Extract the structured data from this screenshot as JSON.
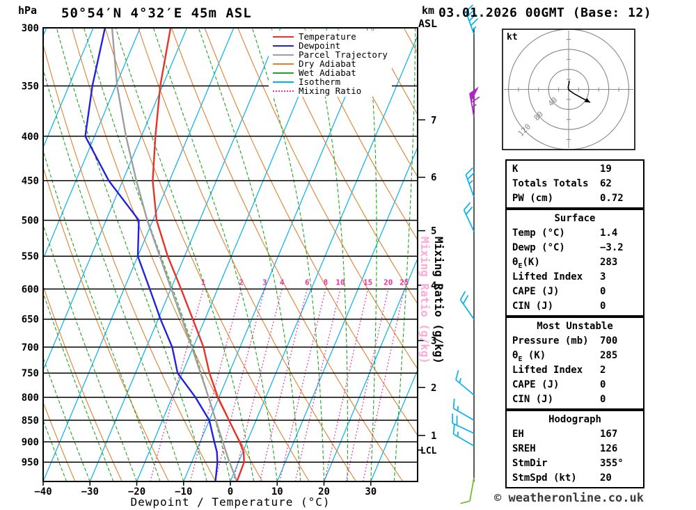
{
  "header": {
    "pressure_unit": "hPa",
    "station": "50°54′N 4°32′E 45m ASL",
    "datetime": "03.01.2026 00GMT (Base: 12)",
    "alt_unit_top": "km",
    "alt_unit_bottom": "ASL"
  },
  "legend": [
    {
      "label": "Temperature",
      "color": "#e73227",
      "style": "solid"
    },
    {
      "label": "Dewpoint",
      "color": "#2121de",
      "style": "solid"
    },
    {
      "label": "Parcel Trajectory",
      "color": "#9e9e9e",
      "style": "solid"
    },
    {
      "label": "Dry Adiabat",
      "color": "#e0812e",
      "style": "solid"
    },
    {
      "label": "Wet Adiabat",
      "color": "#1ea41e",
      "style": "solid"
    },
    {
      "label": "Isotherm",
      "color": "#00b2ee",
      "style": "solid"
    },
    {
      "label": "Mixing Ratio",
      "color": "#ee2fa0",
      "style": "dotted"
    }
  ],
  "axes": {
    "pressure_ticks": [
      300,
      350,
      400,
      450,
      500,
      550,
      600,
      650,
      700,
      750,
      800,
      850,
      900,
      950
    ],
    "temp_ticks": [
      -40,
      -30,
      -20,
      -10,
      0,
      10,
      20,
      30
    ],
    "xlabel": "Dewpoint / Temperature (°C)",
    "km_label_values": [
      {
        "km": 7,
        "p": 383
      },
      {
        "km": 6,
        "p": 446
      },
      {
        "km": 5,
        "p": 514
      },
      {
        "km": 4,
        "p": 594
      },
      {
        "km": 3,
        "p": 688
      },
      {
        "km": 2,
        "p": 779
      },
      {
        "km": 1,
        "p": 885
      }
    ],
    "lcl": {
      "label": "LCL",
      "p": 920
    },
    "mixing_axis_label": "Mixing Ratio (g/kg)"
  },
  "chart_data": {
    "type": "skewt-log-p",
    "pressure_range": [
      300,
      1000
    ],
    "temp_axis_range": [
      -40,
      40
    ],
    "skew_isotherms_degC": {
      "min": -120,
      "max": 40,
      "step": 10
    },
    "dry_adiabats_K": {
      "min": 230,
      "max": 390,
      "step": 10
    },
    "wet_adiabats_degC": {
      "min": -40,
      "max": 40,
      "step": 5
    },
    "mixing_ratio_lines_gkg": [
      1,
      2,
      3,
      4,
      6,
      8,
      10,
      15,
      20,
      25
    ],
    "temperature_profile": [
      [
        1000,
        1.4
      ],
      [
        950,
        1.2
      ],
      [
        925,
        0.2
      ],
      [
        900,
        -1.6
      ],
      [
        850,
        -5.8
      ],
      [
        800,
        -10.2
      ],
      [
        750,
        -14.2
      ],
      [
        700,
        -17.8
      ],
      [
        650,
        -22.6
      ],
      [
        600,
        -27.8
      ],
      [
        550,
        -33.6
      ],
      [
        500,
        -39.2
      ],
      [
        450,
        -43.6
      ],
      [
        400,
        -47.0
      ],
      [
        350,
        -50.5
      ],
      [
        300,
        -53.5
      ]
    ],
    "dewpoint_profile": [
      [
        1000,
        -3.2
      ],
      [
        950,
        -4.5
      ],
      [
        925,
        -5.5
      ],
      [
        900,
        -7.0
      ],
      [
        850,
        -10.0
      ],
      [
        800,
        -15.0
      ],
      [
        750,
        -21.0
      ],
      [
        700,
        -24.5
      ],
      [
        650,
        -29.5
      ],
      [
        600,
        -34.5
      ],
      [
        550,
        -40.0
      ],
      [
        500,
        -43.0
      ],
      [
        450,
        -53.0
      ],
      [
        400,
        -62.0
      ],
      [
        350,
        -65.0
      ],
      [
        300,
        -67.5
      ]
    ],
    "parcel_profile": [
      [
        1000,
        1.4
      ],
      [
        940,
        -2.6
      ],
      [
        900,
        -5.2
      ],
      [
        850,
        -8.6
      ],
      [
        800,
        -12.2
      ],
      [
        750,
        -16.1
      ],
      [
        700,
        -20.3
      ],
      [
        650,
        -24.9
      ],
      [
        600,
        -29.9
      ],
      [
        550,
        -35.3
      ],
      [
        500,
        -41.2
      ],
      [
        450,
        -47.1
      ],
      [
        400,
        -53.3
      ],
      [
        350,
        -59.7
      ],
      [
        300,
        -66.0
      ]
    ],
    "wind_barbs": [
      {
        "p": 305,
        "speed_kt": 45,
        "dir_deg": 340,
        "color": "#00b2ee"
      },
      {
        "p": 380,
        "speed_kt": 65,
        "dir_deg": 350,
        "color": "#b322cc"
      },
      {
        "p": 470,
        "speed_kt": 25,
        "dir_deg": 340,
        "color": "#00b2ee"
      },
      {
        "p": 515,
        "speed_kt": 20,
        "dir_deg": 335,
        "color": "#00b2ee"
      },
      {
        "p": 650,
        "speed_kt": 20,
        "dir_deg": 325,
        "color": "#00b2ee"
      },
      {
        "p": 795,
        "speed_kt": 15,
        "dir_deg": 310,
        "color": "#00b2ee"
      },
      {
        "p": 850,
        "speed_kt": 15,
        "dir_deg": 300,
        "color": "#00b2ee"
      },
      {
        "p": 880,
        "speed_kt": 20,
        "dir_deg": 295,
        "color": "#00b2ee"
      },
      {
        "p": 910,
        "speed_kt": 15,
        "dir_deg": 300,
        "color": "#00b2ee"
      },
      {
        "p": 990,
        "speed_kt": 10,
        "dir_deg": 190,
        "color": "#6cbb22"
      }
    ]
  },
  "hodograph": {
    "unit_label": "kt",
    "rings_kt": [
      40,
      80,
      120
    ],
    "trace_kt": [
      [
        1.5,
        -17
      ],
      [
        -1,
        -4
      ],
      [
        0,
        1
      ],
      [
        10,
        8
      ],
      [
        26,
        17
      ],
      [
        43,
        26
      ]
    ]
  },
  "tables": [
    {
      "id": "indices",
      "title": null,
      "rows": [
        [
          "K",
          "19"
        ],
        [
          "Totals Totals",
          "62"
        ],
        [
          "PW (cm)",
          "0.72"
        ]
      ]
    },
    {
      "id": "surface",
      "title": "Surface",
      "rows": [
        [
          "Temp (°C)",
          "1.4"
        ],
        [
          "Dewp (°C)",
          "−3.2"
        ],
        [
          "θ<sub>E</sub>(K)",
          "283"
        ],
        [
          "Lifted Index",
          "3"
        ],
        [
          "CAPE (J)",
          "0"
        ],
        [
          "CIN (J)",
          "0"
        ]
      ]
    },
    {
      "id": "most_unstable",
      "title": "Most Unstable",
      "rows": [
        [
          "Pressure (mb)",
          "700"
        ],
        [
          "θ<sub>E</sub> (K)",
          "285"
        ],
        [
          "Lifted Index",
          "2"
        ],
        [
          "CAPE (J)",
          "0"
        ],
        [
          "CIN (J)",
          "0"
        ]
      ]
    },
    {
      "id": "hodograph",
      "title": "Hodograph",
      "rows": [
        [
          "EH",
          "167"
        ],
        [
          "SREH",
          "126"
        ],
        [
          "StmDir",
          "355°"
        ],
        [
          "StmSpd (kt)",
          "20"
        ]
      ]
    }
  ],
  "copyright": "© weatheronline.co.uk",
  "colors": {
    "temperature": "#e73227",
    "dewpoint": "#2121de",
    "parcel": "#9e9e9e",
    "dry_adiabat": "#e0812e",
    "wet_adiabat": "#1ea41e",
    "isotherm": "#00b2ee",
    "mixing_ratio": "#ee2fa0",
    "mixing_label_pink": "#ffaad5",
    "isobar": "#000000",
    "hodograph_rings": "#888888"
  }
}
